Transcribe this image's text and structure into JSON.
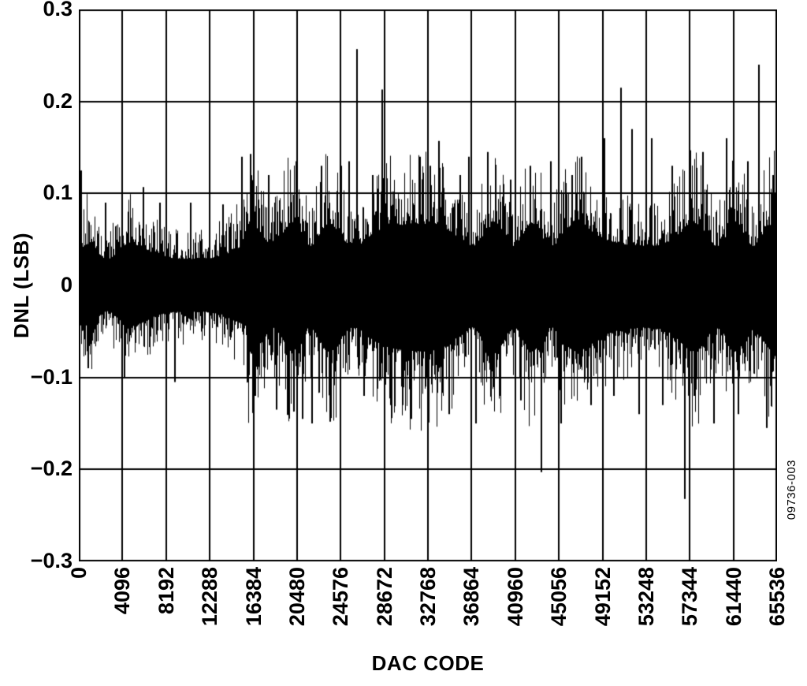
{
  "figure_number": "09736-003",
  "chart_data": {
    "type": "line",
    "description": "Differential nonlinearity (DNL) versus DAC code; dense noise-like trace spanning all 65536 codes",
    "title": "",
    "xlabel": "DAC CODE",
    "ylabel": "DNL (LSB)",
    "xlim": [
      0,
      65536
    ],
    "ylim": [
      -0.3,
      0.3
    ],
    "grid": true,
    "legend": false,
    "line_color": "#000000",
    "background": "#ffffff",
    "xtick_values": [
      0,
      4096,
      8192,
      12288,
      16384,
      20480,
      24576,
      28672,
      32768,
      36864,
      40960,
      45056,
      49152,
      53248,
      57344,
      61440,
      65536
    ],
    "xtick_labels": [
      "0",
      "4096",
      "8192",
      "12288",
      "16384",
      "20480",
      "24576",
      "28672",
      "32768",
      "36864",
      "40960",
      "45056",
      "49152",
      "53248",
      "57344",
      "61440",
      "65536"
    ],
    "ytick_values": [
      0.3,
      0.2,
      0.1,
      0,
      -0.1,
      -0.2,
      -0.3
    ],
    "ytick_labels": [
      "0.3",
      "0.2",
      "0.1",
      "0",
      "−0.1",
      "−0.2",
      "−0.3"
    ],
    "seed": 20231107,
    "noise_envelope": [
      {
        "x_start": 0,
        "x_end": 15700,
        "pos": 0.082,
        "neg": 0.08
      },
      {
        "x_start": 15700,
        "x_end": 65536,
        "pos": 0.122,
        "neg": 0.13
      }
    ],
    "spikes": [
      {
        "x": 250,
        "y": 0.125
      },
      {
        "x": 900,
        "y": -0.09
      },
      {
        "x": 2500,
        "y": 0.09
      },
      {
        "x": 4300,
        "y": -0.1
      },
      {
        "x": 6100,
        "y": 0.107
      },
      {
        "x": 7600,
        "y": 0.09
      },
      {
        "x": 9000,
        "y": -0.105
      },
      {
        "x": 10500,
        "y": 0.09
      },
      {
        "x": 12300,
        "y": -0.095
      },
      {
        "x": 13500,
        "y": 0.088
      },
      {
        "x": 15300,
        "y": 0.14
      },
      {
        "x": 16100,
        "y": 0.143
      },
      {
        "x": 16600,
        "y": -0.12
      },
      {
        "x": 17800,
        "y": 0.12
      },
      {
        "x": 18600,
        "y": -0.135
      },
      {
        "x": 19600,
        "y": -0.11
      },
      {
        "x": 20400,
        "y": 0.135
      },
      {
        "x": 21000,
        "y": -0.145
      },
      {
        "x": 21900,
        "y": -0.15
      },
      {
        "x": 22800,
        "y": 0.13
      },
      {
        "x": 23600,
        "y": -0.148
      },
      {
        "x": 24600,
        "y": 0.13
      },
      {
        "x": 25400,
        "y": 0.135
      },
      {
        "x": 26100,
        "y": 0.257
      },
      {
        "x": 26800,
        "y": -0.12
      },
      {
        "x": 27600,
        "y": 0.12
      },
      {
        "x": 28500,
        "y": 0.213
      },
      {
        "x": 29300,
        "y": -0.13
      },
      {
        "x": 30400,
        "y": -0.13
      },
      {
        "x": 31200,
        "y": -0.145
      },
      {
        "x": 32000,
        "y": 0.14
      },
      {
        "x": 33000,
        "y": 0.13
      },
      {
        "x": 33800,
        "y": 0.157
      },
      {
        "x": 34800,
        "y": -0.14
      },
      {
        "x": 35800,
        "y": 0.12
      },
      {
        "x": 36600,
        "y": 0.14
      },
      {
        "x": 37300,
        "y": -0.15
      },
      {
        "x": 38400,
        "y": 0.145
      },
      {
        "x": 39500,
        "y": -0.12
      },
      {
        "x": 40500,
        "y": 0.115
      },
      {
        "x": 41500,
        "y": -0.125
      },
      {
        "x": 42400,
        "y": 0.13
      },
      {
        "x": 43400,
        "y": -0.203
      },
      {
        "x": 44300,
        "y": 0.135
      },
      {
        "x": 45300,
        "y": -0.15
      },
      {
        "x": 46300,
        "y": 0.12
      },
      {
        "x": 47200,
        "y": 0.14
      },
      {
        "x": 48100,
        "y": -0.13
      },
      {
        "x": 49300,
        "y": 0.16
      },
      {
        "x": 50200,
        "y": -0.12
      },
      {
        "x": 50900,
        "y": 0.215
      },
      {
        "x": 51900,
        "y": 0.17
      },
      {
        "x": 52600,
        "y": -0.14
      },
      {
        "x": 53800,
        "y": 0.16
      },
      {
        "x": 54800,
        "y": -0.13
      },
      {
        "x": 55700,
        "y": 0.13
      },
      {
        "x": 56900,
        "y": -0.232
      },
      {
        "x": 57800,
        "y": -0.12
      },
      {
        "x": 58600,
        "y": 0.145
      },
      {
        "x": 59600,
        "y": -0.15
      },
      {
        "x": 60800,
        "y": 0.16
      },
      {
        "x": 61900,
        "y": -0.14
      },
      {
        "x": 62800,
        "y": 0.135
      },
      {
        "x": 63800,
        "y": 0.24
      },
      {
        "x": 64600,
        "y": -0.155
      },
      {
        "x": 65200,
        "y": 0.12
      }
    ]
  }
}
